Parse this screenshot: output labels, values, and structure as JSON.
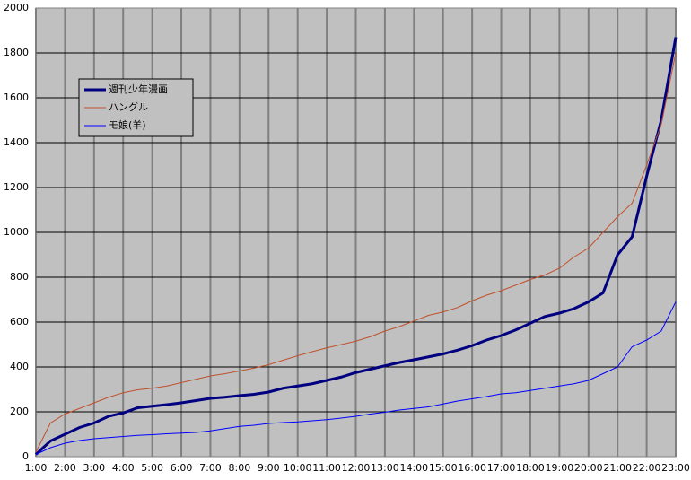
{
  "chart_data": {
    "type": "line",
    "categories": [
      "1:00",
      null,
      "2:00",
      null,
      "3:00",
      null,
      "4:00",
      null,
      "5:00",
      null,
      "6:00",
      null,
      "7:00",
      null,
      "8:00",
      null,
      "9:00",
      null,
      "10:00",
      null,
      "11:00",
      null,
      "12:00",
      null,
      "13:00",
      null,
      "14:00",
      null,
      "15:00",
      null,
      "16:00",
      null,
      "17:00",
      null,
      "18:00",
      null,
      "19:00",
      null,
      "20:00",
      null,
      "21:00",
      null,
      "22:00",
      null,
      "23:00"
    ],
    "series": [
      {
        "name": "週刊少年漫画",
        "color": "#000080",
        "width": 3,
        "values": [
          10,
          70,
          100,
          130,
          150,
          180,
          195,
          218,
          225,
          232,
          240,
          250,
          260,
          265,
          272,
          278,
          288,
          305,
          315,
          325,
          340,
          355,
          375,
          390,
          405,
          420,
          432,
          445,
          458,
          475,
          495,
          520,
          540,
          565,
          595,
          625,
          640,
          660,
          690,
          730,
          900,
          980,
          1250,
          1500,
          1870
        ]
      },
      {
        "name": "ハングル",
        "color": "#c0502c",
        "width": 1,
        "values": [
          20,
          150,
          190,
          215,
          240,
          265,
          285,
          298,
          305,
          315,
          330,
          345,
          360,
          370,
          382,
          395,
          410,
          430,
          450,
          468,
          485,
          500,
          515,
          535,
          560,
          580,
          605,
          630,
          645,
          665,
          695,
          720,
          740,
          765,
          790,
          810,
          840,
          890,
          930,
          1000,
          1070,
          1130,
          1300,
          1480,
          1800
        ]
      },
      {
        "name": "モ娘(羊)",
        "color": "#0000ff",
        "width": 1,
        "values": [
          10,
          40,
          60,
          72,
          80,
          85,
          90,
          95,
          98,
          102,
          105,
          108,
          115,
          125,
          135,
          140,
          148,
          152,
          155,
          160,
          165,
          172,
          180,
          190,
          198,
          208,
          215,
          222,
          235,
          248,
          258,
          268,
          280,
          285,
          295,
          305,
          315,
          325,
          340,
          370,
          400,
          490,
          520,
          560,
          690
        ]
      }
    ],
    "ylim": [
      0,
      2000
    ],
    "yticks": [
      0,
      200,
      400,
      600,
      800,
      1000,
      1200,
      1400,
      1600,
      1800,
      2000
    ],
    "grid": true
  }
}
